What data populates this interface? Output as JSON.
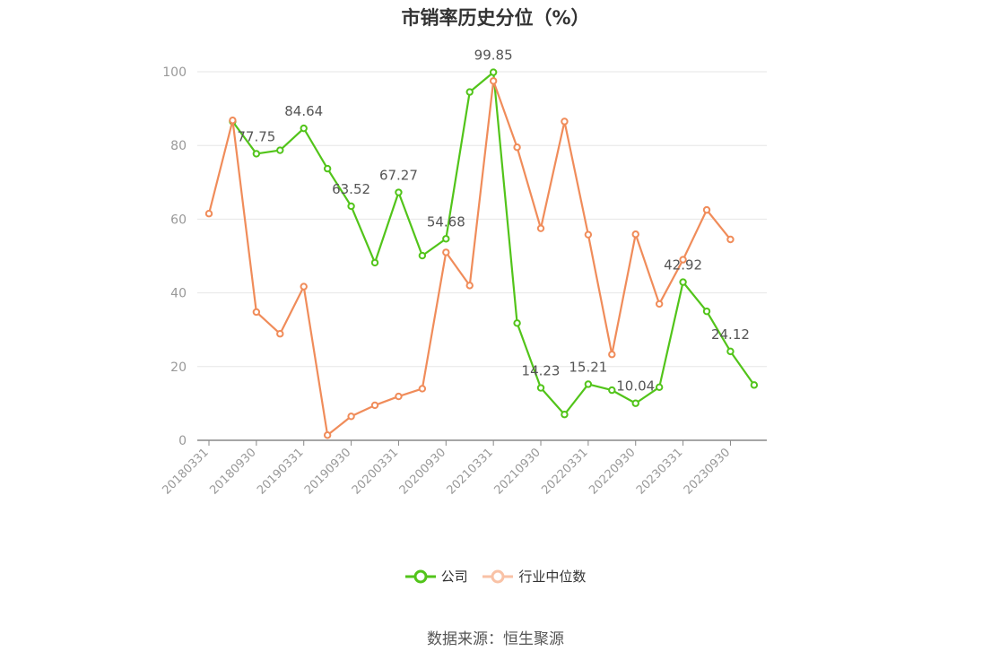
{
  "chart_data": {
    "type": "line",
    "title": "市销率历史分位（%）",
    "ylim": [
      0,
      100
    ],
    "yticks": [
      0,
      20,
      40,
      60,
      80,
      100
    ],
    "grid": "horizontal",
    "legend_position": "bottom-center",
    "x": [
      "20180331",
      "20180630",
      "20180930",
      "20181231",
      "20190331",
      "20190630",
      "20190930",
      "20191231",
      "20200331",
      "20200630",
      "20200930",
      "20201231",
      "20210331",
      "20210630",
      "20210930",
      "20211231",
      "20220331",
      "20220630",
      "20220930",
      "20221231",
      "20230331",
      "20230630",
      "20230930",
      "20231231"
    ],
    "xtick_labels": [
      "20180331",
      "20180930",
      "20190331",
      "20190930",
      "20200331",
      "20200930",
      "20210331",
      "20210930",
      "20220331",
      "20220930",
      "20230331",
      "20230930"
    ],
    "series": [
      {
        "name": "公司",
        "color": "#52c41a",
        "values": [
          null,
          86.5,
          77.75,
          78.7,
          84.64,
          73.7,
          63.52,
          48.2,
          67.27,
          50.1,
          54.68,
          94.5,
          99.85,
          31.8,
          14.23,
          7.0,
          15.21,
          13.6,
          10.04,
          14.4,
          42.92,
          35.0,
          24.12,
          15.0
        ],
        "labels": [
          null,
          null,
          "77.75",
          null,
          "84.64",
          null,
          "63.52",
          null,
          "67.27",
          null,
          "54.68",
          null,
          "99.85",
          null,
          "14.23",
          null,
          "15.21",
          null,
          "10.04",
          null,
          "42.92",
          null,
          "24.12",
          null
        ]
      },
      {
        "name": "行业中位数",
        "color": "#f08c5a",
        "values": [
          61.5,
          86.8,
          34.8,
          28.9,
          41.7,
          1.4,
          6.5,
          9.5,
          11.9,
          14.0,
          51.0,
          42.0,
          97.5,
          79.5,
          57.5,
          86.5,
          55.8,
          23.3,
          55.9,
          37.0,
          49.0,
          62.5,
          54.5,
          null
        ],
        "labels": []
      }
    ]
  },
  "legend": {
    "company": "公司",
    "industry": "行业中位数"
  },
  "source": "数据来源：恒生聚源"
}
